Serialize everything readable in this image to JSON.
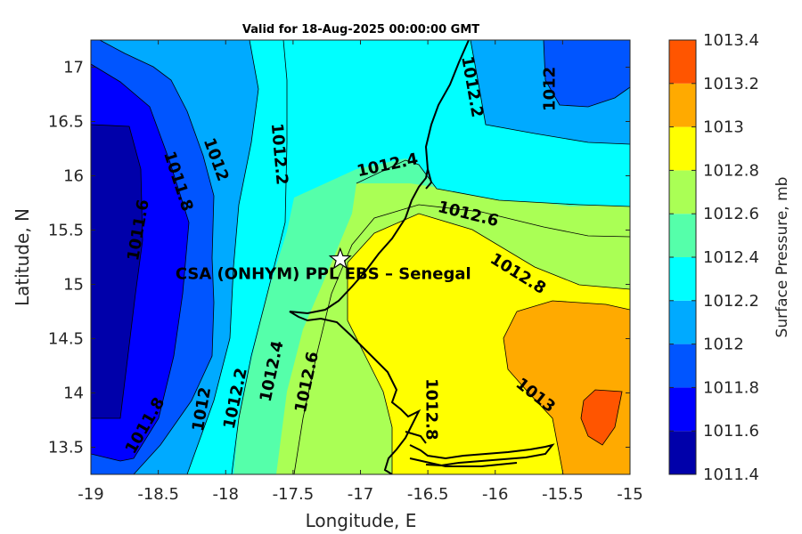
{
  "chart_data": {
    "type": "contour",
    "title": "Valid for 18-Aug-2025 00:00:00 GMT",
    "xlabel": "Longitude, E",
    "ylabel": "Latitude, N",
    "xlim": [
      -19,
      -15
    ],
    "ylim": [
      13.25,
      17.25
    ],
    "xticks": [
      "-19",
      "-18.5",
      "-18",
      "-17.5",
      "-17",
      "-16.5",
      "-16",
      "-15.5",
      "-15"
    ],
    "yticks": [
      "13.5",
      "14",
      "14.5",
      "15",
      "15.5",
      "16",
      "16.5",
      "17"
    ],
    "colorbar": {
      "label": "Surface Pressure, mb",
      "levels": [
        1011.4,
        1011.6,
        1011.8,
        1012,
        1012.2,
        1012.4,
        1012.6,
        1012.8,
        1013,
        1013.2,
        1013.4
      ],
      "tick_labels": [
        "1011.4",
        "1011.6",
        "1011.8",
        "1012",
        "1012.2",
        "1012.4",
        "1012.6",
        "1012.8",
        "1013",
        "1013.2",
        "1013.4"
      ],
      "colors": [
        "#0000aa",
        "#0000ff",
        "#0055ff",
        "#00aaff",
        "#00ffff",
        "#55ffaa",
        "#aaff55",
        "#ffff00",
        "#ffaa00",
        "#ff5500",
        "#ff0000"
      ]
    },
    "contour_labels": [
      {
        "text": "1011.6",
        "lon": -18.65,
        "lat": 15.5,
        "angle": -80
      },
      {
        "text": "1011.8",
        "lon": -18.35,
        "lat": 15.95,
        "angle": 72
      },
      {
        "text": "1011.8",
        "lon": -18.6,
        "lat": 13.7,
        "angle": -60
      },
      {
        "text": "1012",
        "lon": -18.07,
        "lat": 16.15,
        "angle": 70
      },
      {
        "text": "1012",
        "lon": -18.18,
        "lat": 13.85,
        "angle": -80
      },
      {
        "text": "1012",
        "lon": -15.6,
        "lat": 16.8,
        "angle": -90
      },
      {
        "text": "1012.2",
        "lon": -17.6,
        "lat": 16.2,
        "angle": 85
      },
      {
        "text": "1012.2",
        "lon": -17.93,
        "lat": 13.95,
        "angle": -78
      },
      {
        "text": "1012.2",
        "lon": -16.17,
        "lat": 16.82,
        "angle": 80
      },
      {
        "text": "1012.4",
        "lon": -16.8,
        "lat": 16.1,
        "angle": -12
      },
      {
        "text": "1012.4",
        "lon": -17.66,
        "lat": 14.2,
        "angle": -78
      },
      {
        "text": "1012.6",
        "lon": -16.2,
        "lat": 15.65,
        "angle": 14
      },
      {
        "text": "1012.6",
        "lon": -17.4,
        "lat": 14.1,
        "angle": -78
      },
      {
        "text": "1012.8",
        "lon": -15.83,
        "lat": 15.1,
        "angle": 32
      },
      {
        "text": "1012.8",
        "lon": -16.47,
        "lat": 13.85,
        "angle": 90
      },
      {
        "text": "1013",
        "lon": -15.7,
        "lat": 13.98,
        "angle": 38
      }
    ],
    "site": {
      "name": "CSA (ONHYM) PPL EBS  – Senegal",
      "lon": -17.15,
      "lat": 15.23
    }
  }
}
